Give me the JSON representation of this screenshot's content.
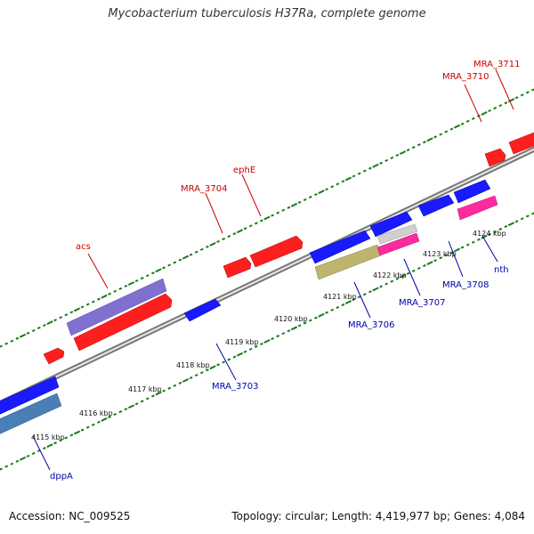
{
  "title": "Mycobacterium tuberculosis H37Ra, complete genome",
  "footer": {
    "accession": "Accession: NC_009525",
    "summary": "Topology: circular; Length: 4,419,977 bp; Genes: 4,084"
  },
  "scale_labels": [
    "4115 kbp",
    "4116 kbp",
    "4117 kbp",
    "4118 kbp",
    "4119 kbp",
    "4120 kbp",
    "4121 kbp",
    "4122 kbp",
    "4123 kbp",
    "4124 kbp"
  ],
  "gene_labels_top": [
    "acs",
    "MRA_3704",
    "ephE",
    "MRA_3710",
    "MRA_3711"
  ],
  "gene_labels_bottom": [
    "dppA",
    "MRA_3703",
    "MRA_3706",
    "MRA_3707",
    "MRA_3708",
    "nth"
  ],
  "colors": {
    "forward_gene": "#ff0000",
    "reverse_gene": "#0000ff",
    "forward_label": "#cc0000",
    "reverse_label": "#0000aa",
    "tick": "#1a7a1a",
    "backbone": "#888888",
    "purple_feature": "#7b68c8",
    "steelblue_feature": "#4a7fb5",
    "olive_feature": "#b8b06a",
    "pink_feature": "#ff1493",
    "grey_feature": "#c8c8c8"
  }
}
